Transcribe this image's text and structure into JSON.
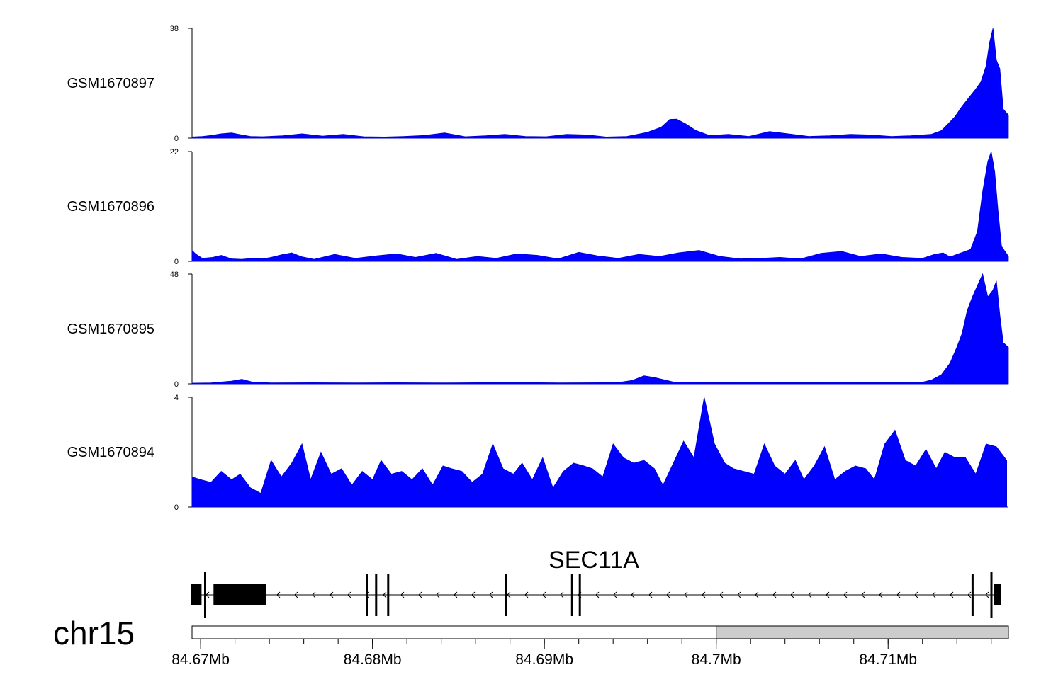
{
  "chart_data": {
    "type": "area",
    "x_unit": "Mb",
    "x_range": [
      84.6695,
      84.717
    ],
    "chromosome": "chr15",
    "x_ticks": [
      {
        "value": 84.67,
        "label": "84.67Mb"
      },
      {
        "value": 84.68,
        "label": "84.68Mb"
      },
      {
        "value": 84.69,
        "label": "84.69Mb"
      },
      {
        "value": 84.7,
        "label": "84.7Mb"
      },
      {
        "value": 84.71,
        "label": "84.71Mb"
      }
    ],
    "series": [
      {
        "name": "GSM1670897",
        "color": "#0000FF",
        "ylim": [
          0,
          38
        ],
        "ytick_labels": [
          "0",
          "38"
        ],
        "x": [
          84.6695,
          84.6701,
          84.6706,
          84.6712,
          84.6718,
          84.6724,
          84.6729,
          84.6736,
          84.6748,
          84.6759,
          84.6771,
          84.6783,
          84.6795,
          84.6807,
          84.6818,
          84.683,
          84.6842,
          84.6854,
          84.6866,
          84.6877,
          84.6889,
          84.6901,
          84.6913,
          84.6925,
          84.6936,
          84.6948,
          84.696,
          84.6968,
          84.6973,
          84.6977,
          84.6982,
          84.6988,
          84.6996,
          84.7007,
          84.7019,
          84.7031,
          84.7043,
          84.7054,
          84.7066,
          84.7078,
          84.709,
          84.7102,
          84.7113,
          84.7125,
          84.7131,
          84.7135,
          84.7139,
          84.7143,
          84.7147,
          84.7151,
          84.7154,
          84.7157,
          84.7159,
          84.7161,
          84.7163,
          84.7165,
          84.7167,
          84.717
        ],
        "y": [
          0.4,
          0.6,
          0.9,
          1.5,
          1.8,
          1.1,
          0.6,
          0.5,
          0.8,
          1.5,
          0.7,
          1.3,
          0.5,
          0.4,
          0.6,
          0.9,
          1.8,
          0.5,
          0.8,
          1.3,
          0.6,
          0.5,
          1.3,
          1.1,
          0.4,
          0.6,
          2.0,
          3.8,
          6.5,
          6.6,
          5.0,
          2.7,
          0.9,
          1.3,
          0.6,
          2.3,
          1.4,
          0.6,
          0.8,
          1.3,
          1.1,
          0.6,
          0.8,
          1.3,
          2.6,
          5.0,
          7.5,
          11.0,
          14.0,
          17.0,
          19.5,
          25.0,
          33.0,
          38.0,
          27.0,
          24.0,
          10.0,
          8.0
        ]
      },
      {
        "name": "GSM1670896",
        "color": "#0000FF",
        "ylim": [
          0,
          22
        ],
        "ytick_labels": [
          "0",
          "22"
        ],
        "x": [
          84.6695,
          84.6697,
          84.6701,
          84.6707,
          84.6712,
          84.6718,
          84.6724,
          84.673,
          84.6736,
          84.6741,
          84.6747,
          84.6753,
          84.6759,
          84.6766,
          84.6778,
          84.679,
          84.6802,
          84.6814,
          84.6825,
          84.6837,
          84.6849,
          84.6861,
          84.6872,
          84.6884,
          84.6896,
          84.6908,
          84.692,
          84.6931,
          84.6943,
          84.6955,
          84.6967,
          84.6978,
          84.699,
          84.7002,
          84.7014,
          84.7026,
          84.7037,
          84.7049,
          84.7061,
          84.7073,
          84.7084,
          84.7096,
          84.7108,
          84.712,
          84.7127,
          84.7132,
          84.7136,
          84.7148,
          84.7152,
          84.7155,
          84.7158,
          84.716,
          84.7162,
          84.7164,
          84.7166,
          84.7168,
          84.717
        ],
        "y": [
          2.2,
          1.5,
          0.6,
          0.8,
          1.2,
          0.5,
          0.4,
          0.6,
          0.5,
          0.8,
          1.3,
          1.7,
          0.9,
          0.4,
          1.4,
          0.6,
          1.1,
          1.5,
          0.8,
          1.6,
          0.4,
          1.0,
          0.6,
          1.5,
          1.2,
          0.5,
          1.8,
          1.1,
          0.6,
          1.4,
          1.0,
          1.7,
          2.2,
          1.0,
          0.5,
          0.6,
          0.8,
          0.5,
          1.6,
          2.0,
          1.0,
          1.5,
          0.8,
          0.6,
          1.4,
          1.7,
          0.9,
          2.4,
          6.0,
          14.0,
          20.0,
          22.0,
          18.0,
          10.0,
          3.0,
          2.0,
          1.0
        ]
      },
      {
        "name": "GSM1670895",
        "color": "#0000FF",
        "ylim": [
          0,
          48
        ],
        "ytick_labels": [
          "0",
          "48"
        ],
        "x": [
          84.6695,
          84.6706,
          84.6712,
          84.6718,
          84.6724,
          84.673,
          84.6741,
          84.6765,
          84.6789,
          84.6813,
          84.6837,
          84.6861,
          84.6885,
          84.6909,
          84.6933,
          84.6943,
          84.6951,
          84.6958,
          84.6964,
          84.6975,
          84.6999,
          84.7023,
          84.7047,
          84.7071,
          84.7095,
          84.7119,
          84.7125,
          84.7131,
          84.7136,
          84.714,
          84.7143,
          84.7146,
          84.7149,
          84.7152,
          84.7155,
          84.7158,
          84.7161,
          84.7163,
          84.7165,
          84.7167,
          84.717
        ],
        "y": [
          0.3,
          0.4,
          0.8,
          1.2,
          2.0,
          0.8,
          0.4,
          0.5,
          0.4,
          0.5,
          0.4,
          0.5,
          0.6,
          0.4,
          0.5,
          0.6,
          1.5,
          3.5,
          2.8,
          0.8,
          0.5,
          0.6,
          0.5,
          0.6,
          0.5,
          0.6,
          1.6,
          4.0,
          9.0,
          16.0,
          22.0,
          32.0,
          38.0,
          43.0,
          48.0,
          38.0,
          41.0,
          45.0,
          30.0,
          18.0,
          16.0
        ]
      },
      {
        "name": "GSM1670894",
        "color": "#0000FF",
        "ylim": [
          0,
          4
        ],
        "ytick_labels": [
          "0",
          "4"
        ],
        "x": [
          84.6695,
          84.67,
          84.6706,
          84.6712,
          84.6718,
          84.6723,
          84.6729,
          84.6735,
          84.6741,
          84.6747,
          84.6753,
          84.6759,
          84.6764,
          84.677,
          84.6776,
          84.6782,
          84.6788,
          84.6794,
          84.68,
          84.6805,
          84.6811,
          84.6817,
          84.6823,
          84.6829,
          84.6835,
          84.6841,
          84.6846,
          84.6852,
          84.6858,
          84.6864,
          84.687,
          84.6876,
          84.6882,
          84.6887,
          84.6893,
          84.6899,
          84.6905,
          84.6911,
          84.6917,
          84.6923,
          84.6928,
          84.6934,
          84.694,
          84.6946,
          84.6952,
          84.6958,
          84.6964,
          84.6969,
          84.6975,
          84.6981,
          84.6987,
          84.6993,
          84.6999,
          84.7005,
          84.701,
          84.7016,
          84.7022,
          84.7028,
          84.7034,
          84.704,
          84.7046,
          84.7051,
          84.7057,
          84.7063,
          84.7069,
          84.7075,
          84.7081,
          84.7087,
          84.7092,
          84.7098,
          84.7104,
          84.711,
          84.7116,
          84.7122,
          84.7128,
          84.7133,
          84.7139,
          84.7145,
          84.7151,
          84.7157,
          84.7163,
          84.7169
        ],
        "y": [
          1.1,
          1.0,
          0.9,
          1.3,
          1.0,
          1.2,
          0.7,
          0.5,
          1.7,
          1.1,
          1.6,
          2.3,
          1.0,
          2.0,
          1.2,
          1.4,
          0.8,
          1.3,
          1.0,
          1.7,
          1.2,
          1.3,
          1.0,
          1.4,
          0.8,
          1.5,
          1.4,
          1.3,
          0.9,
          1.2,
          2.3,
          1.4,
          1.2,
          1.6,
          1.0,
          1.8,
          0.7,
          1.3,
          1.6,
          1.5,
          1.4,
          1.1,
          2.3,
          1.8,
          1.6,
          1.7,
          1.4,
          0.8,
          1.6,
          2.4,
          1.8,
          4.0,
          2.3,
          1.6,
          1.4,
          1.3,
          1.2,
          2.3,
          1.5,
          1.2,
          1.7,
          1.0,
          1.5,
          2.2,
          1.0,
          1.3,
          1.5,
          1.4,
          1.0,
          2.3,
          2.8,
          1.7,
          1.5,
          2.1,
          1.4,
          2.0,
          1.8,
          1.8,
          1.2,
          2.3,
          2.2,
          1.7
        ]
      }
    ],
    "gene": {
      "name": "SEC11A",
      "strand": "-",
      "start": 84.6695,
      "end": 84.7163,
      "exons": [
        {
          "start": 84.66945,
          "end": 84.67005,
          "kind": "coding"
        },
        {
          "start": 84.67075,
          "end": 84.6738,
          "kind": "coding"
        },
        {
          "start": 84.6796,
          "end": 84.67972,
          "kind": "exon"
        },
        {
          "start": 84.68015,
          "end": 84.68025,
          "kind": "exon"
        },
        {
          "start": 84.68085,
          "end": 84.68097,
          "kind": "exon"
        },
        {
          "start": 84.6877,
          "end": 84.68782,
          "kind": "exon"
        },
        {
          "start": 84.69155,
          "end": 84.69167,
          "kind": "exon"
        },
        {
          "start": 84.692,
          "end": 84.69212,
          "kind": "exon"
        },
        {
          "start": 84.71485,
          "end": 84.71497,
          "kind": "exon"
        },
        {
          "start": 84.71615,
          "end": 84.71655,
          "kind": "coding"
        }
      ],
      "tss_marks": [
        84.6702,
        84.71595
      ]
    },
    "ideogram_band": {
      "start": 84.7,
      "end": 84.717,
      "color": "#CCCCCC"
    }
  }
}
